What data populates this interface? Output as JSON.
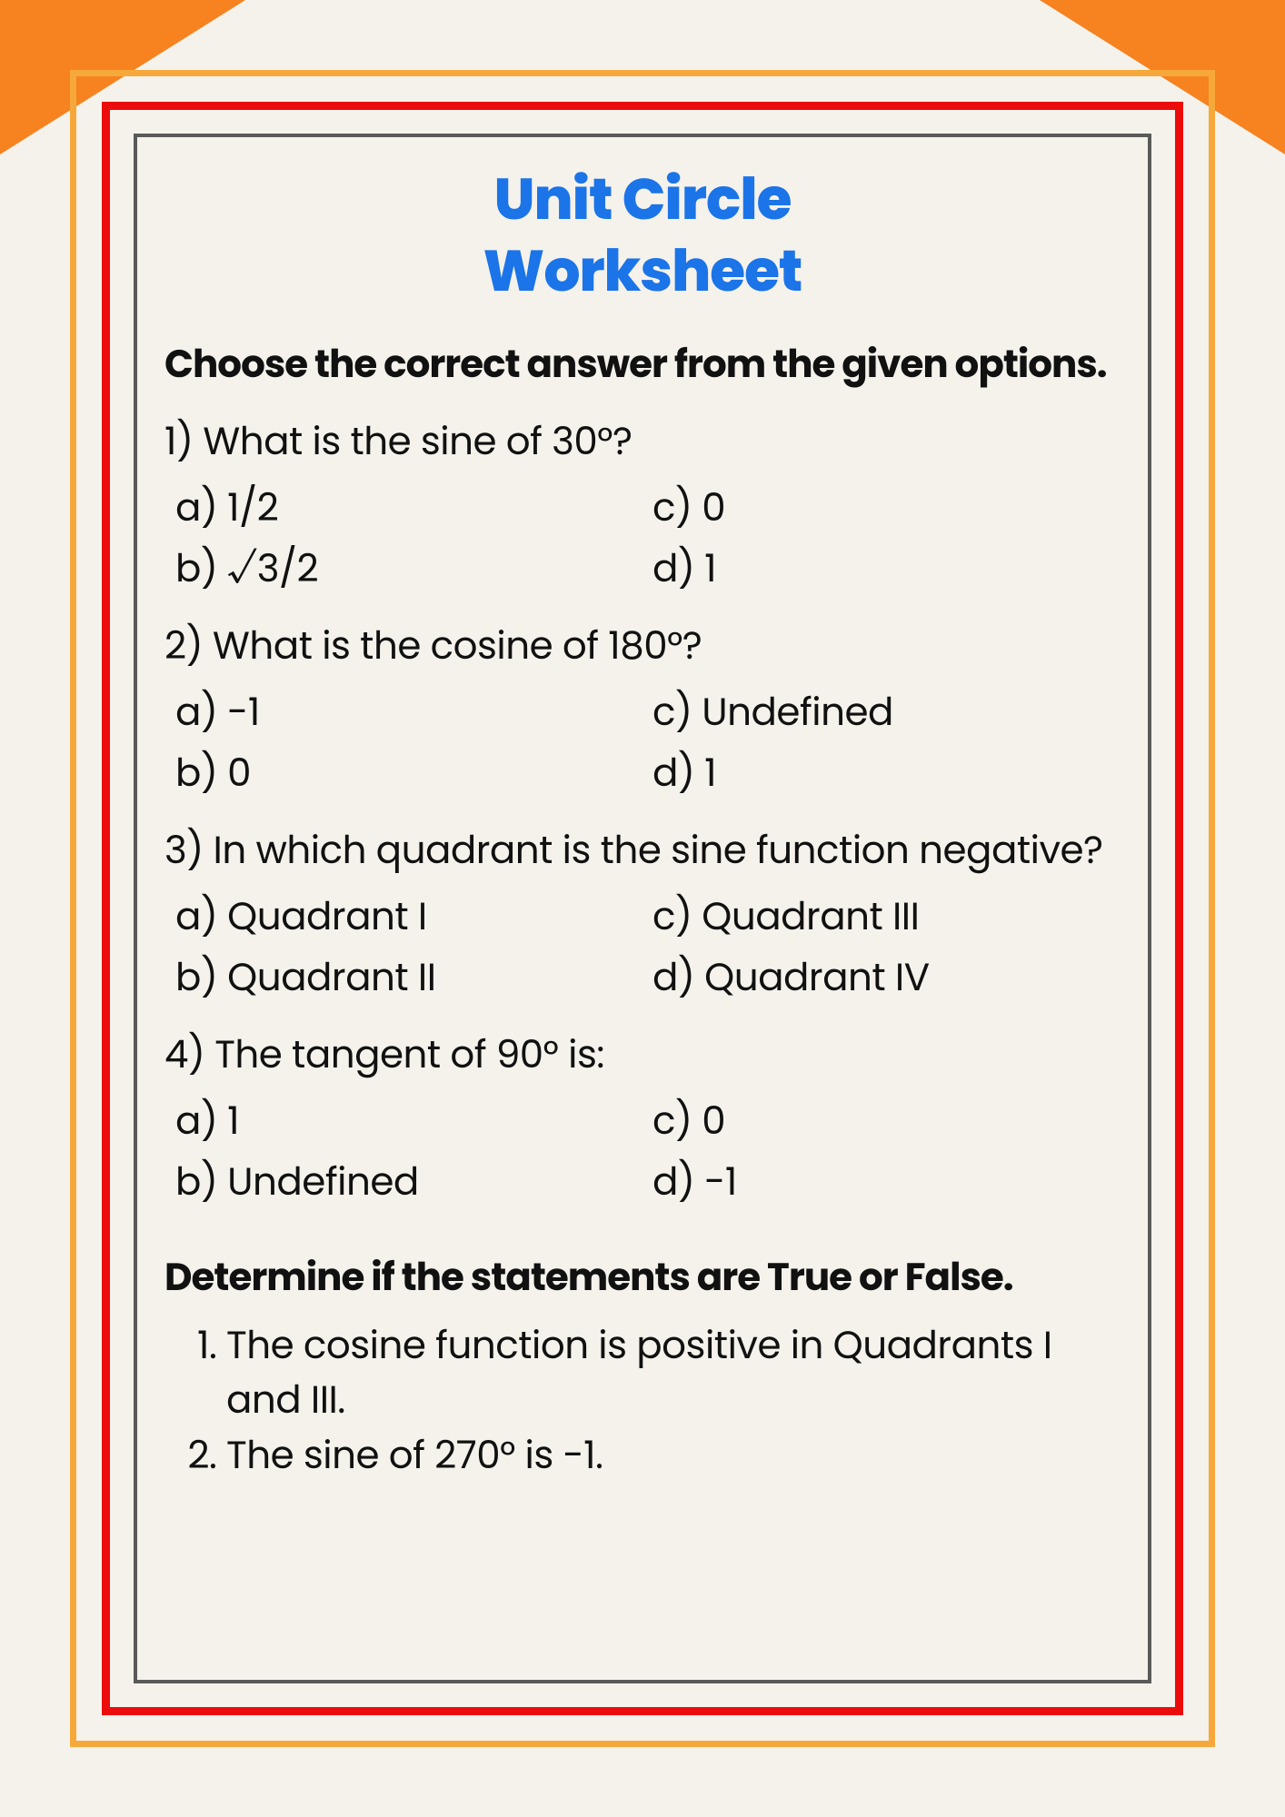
{
  "colors": {
    "background": "#f4f2eb",
    "corner": "#f68220",
    "border_outer": "#f7a83b",
    "border_mid": "#eb0c0c",
    "border_inner": "#5a5a5a",
    "title": "#1b74e8",
    "text": "#111111"
  },
  "title_line1": "Unit Circle",
  "title_line2": "Worksheet",
  "section1": {
    "instruction": "Choose the correct answer from the given options.",
    "questions": [
      {
        "prompt": "1) What is the sine of 30°?",
        "a": "a) 1/2",
        "b": "b) √3/2",
        "c": "c) 0",
        "d": "d) 1"
      },
      {
        "prompt": "2) What is the cosine of 180°?",
        "a": "a) -1",
        "b": "b) 0",
        "c": "c) Undefined",
        "d": "d) 1"
      },
      {
        "prompt": "3) In which quadrant is the sine function negative?",
        "a": "a) Quadrant I",
        "b": "b) Quadrant II",
        "c": "c) Quadrant III",
        "d": "d) Quadrant IV"
      },
      {
        "prompt": "4) The tangent of 90° is:",
        "a": "a) 1",
        "b": "b) Undefined",
        "c": "c) 0",
        "d": "d) -1"
      }
    ]
  },
  "section2": {
    "instruction": "Determine if the statements are True or False.",
    "items": [
      "The cosine function is positive in Quadrants I and III.",
      "The sine of 270° is -1."
    ]
  }
}
